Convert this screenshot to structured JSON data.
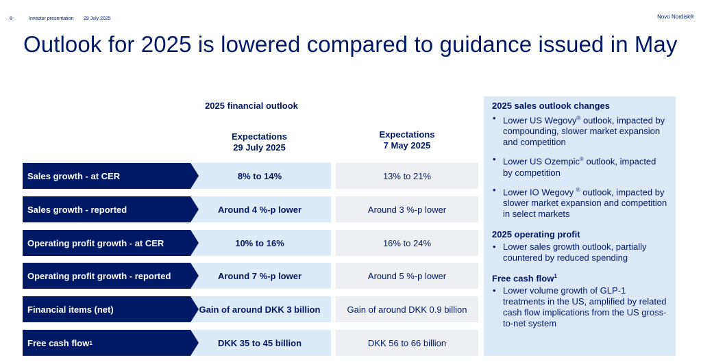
{
  "header": {
    "page_number": "8",
    "document": "Investor presentation",
    "date": "29 July 2025",
    "brand": "Novo Nordisk®"
  },
  "title": "Outlook for 2025 is lowered compared to guidance issued in May",
  "table": {
    "heading": "2025 financial outlook",
    "col1_line1": "Expectations",
    "col1_line2": "29 July 2025",
    "col2_line1": "Expectations",
    "col2_line2": "7 May 2025",
    "rows": [
      {
        "label": "Sales growth - at CER",
        "current": "8% to 14%",
        "previous": "13% to 21%"
      },
      {
        "label": "Sales growth - reported",
        "current": "Around 4 %-p lower",
        "previous": "Around 3 %-p lower"
      },
      {
        "label": "Operating profit growth - at CER",
        "current": "10% to 16%",
        "previous": "16% to 24%"
      },
      {
        "label": "Operating profit growth - reported",
        "current": "Around 7 %-p lower",
        "previous": "Around 5 %-p lower"
      },
      {
        "label": "Financial items (net)",
        "current": "Gain of around DKK 3 billion",
        "previous": "Gain of around DKK 0.9 billion"
      },
      {
        "label": "Free cash flow",
        "label_sup": "1",
        "current": "DKK 35 to 45 billion",
        "previous": "DKK 56 to 66 billion"
      }
    ]
  },
  "panel": {
    "sales_heading": "2025 sales outlook changes",
    "sales_bullets": [
      {
        "a": "Lower US Wegovy",
        "sup": "®",
        "b": " outlook, impacted by compounding, slower market expansion and competition"
      },
      {
        "a": "Lower US Ozempic",
        "sup": "®",
        "b": " outlook, impacted by competition"
      },
      {
        "a": "Lower IO Wegovy ",
        "sup": "®",
        "b": " outlook, impacted by slower market expansion and competition in select markets"
      }
    ],
    "op_heading": "2025 operating profit",
    "op_bullets": [
      "Lower sales growth outlook, partially countered by reduced spending"
    ],
    "fcf_heading": "Free cash flow",
    "fcf_sup": "1",
    "fcf_bullets": [
      "Lower volume growth of GLP-1 treatments in the US, amplified by related cash flow implications from the US gross-to-net system"
    ],
    "bullet_char": "•"
  }
}
